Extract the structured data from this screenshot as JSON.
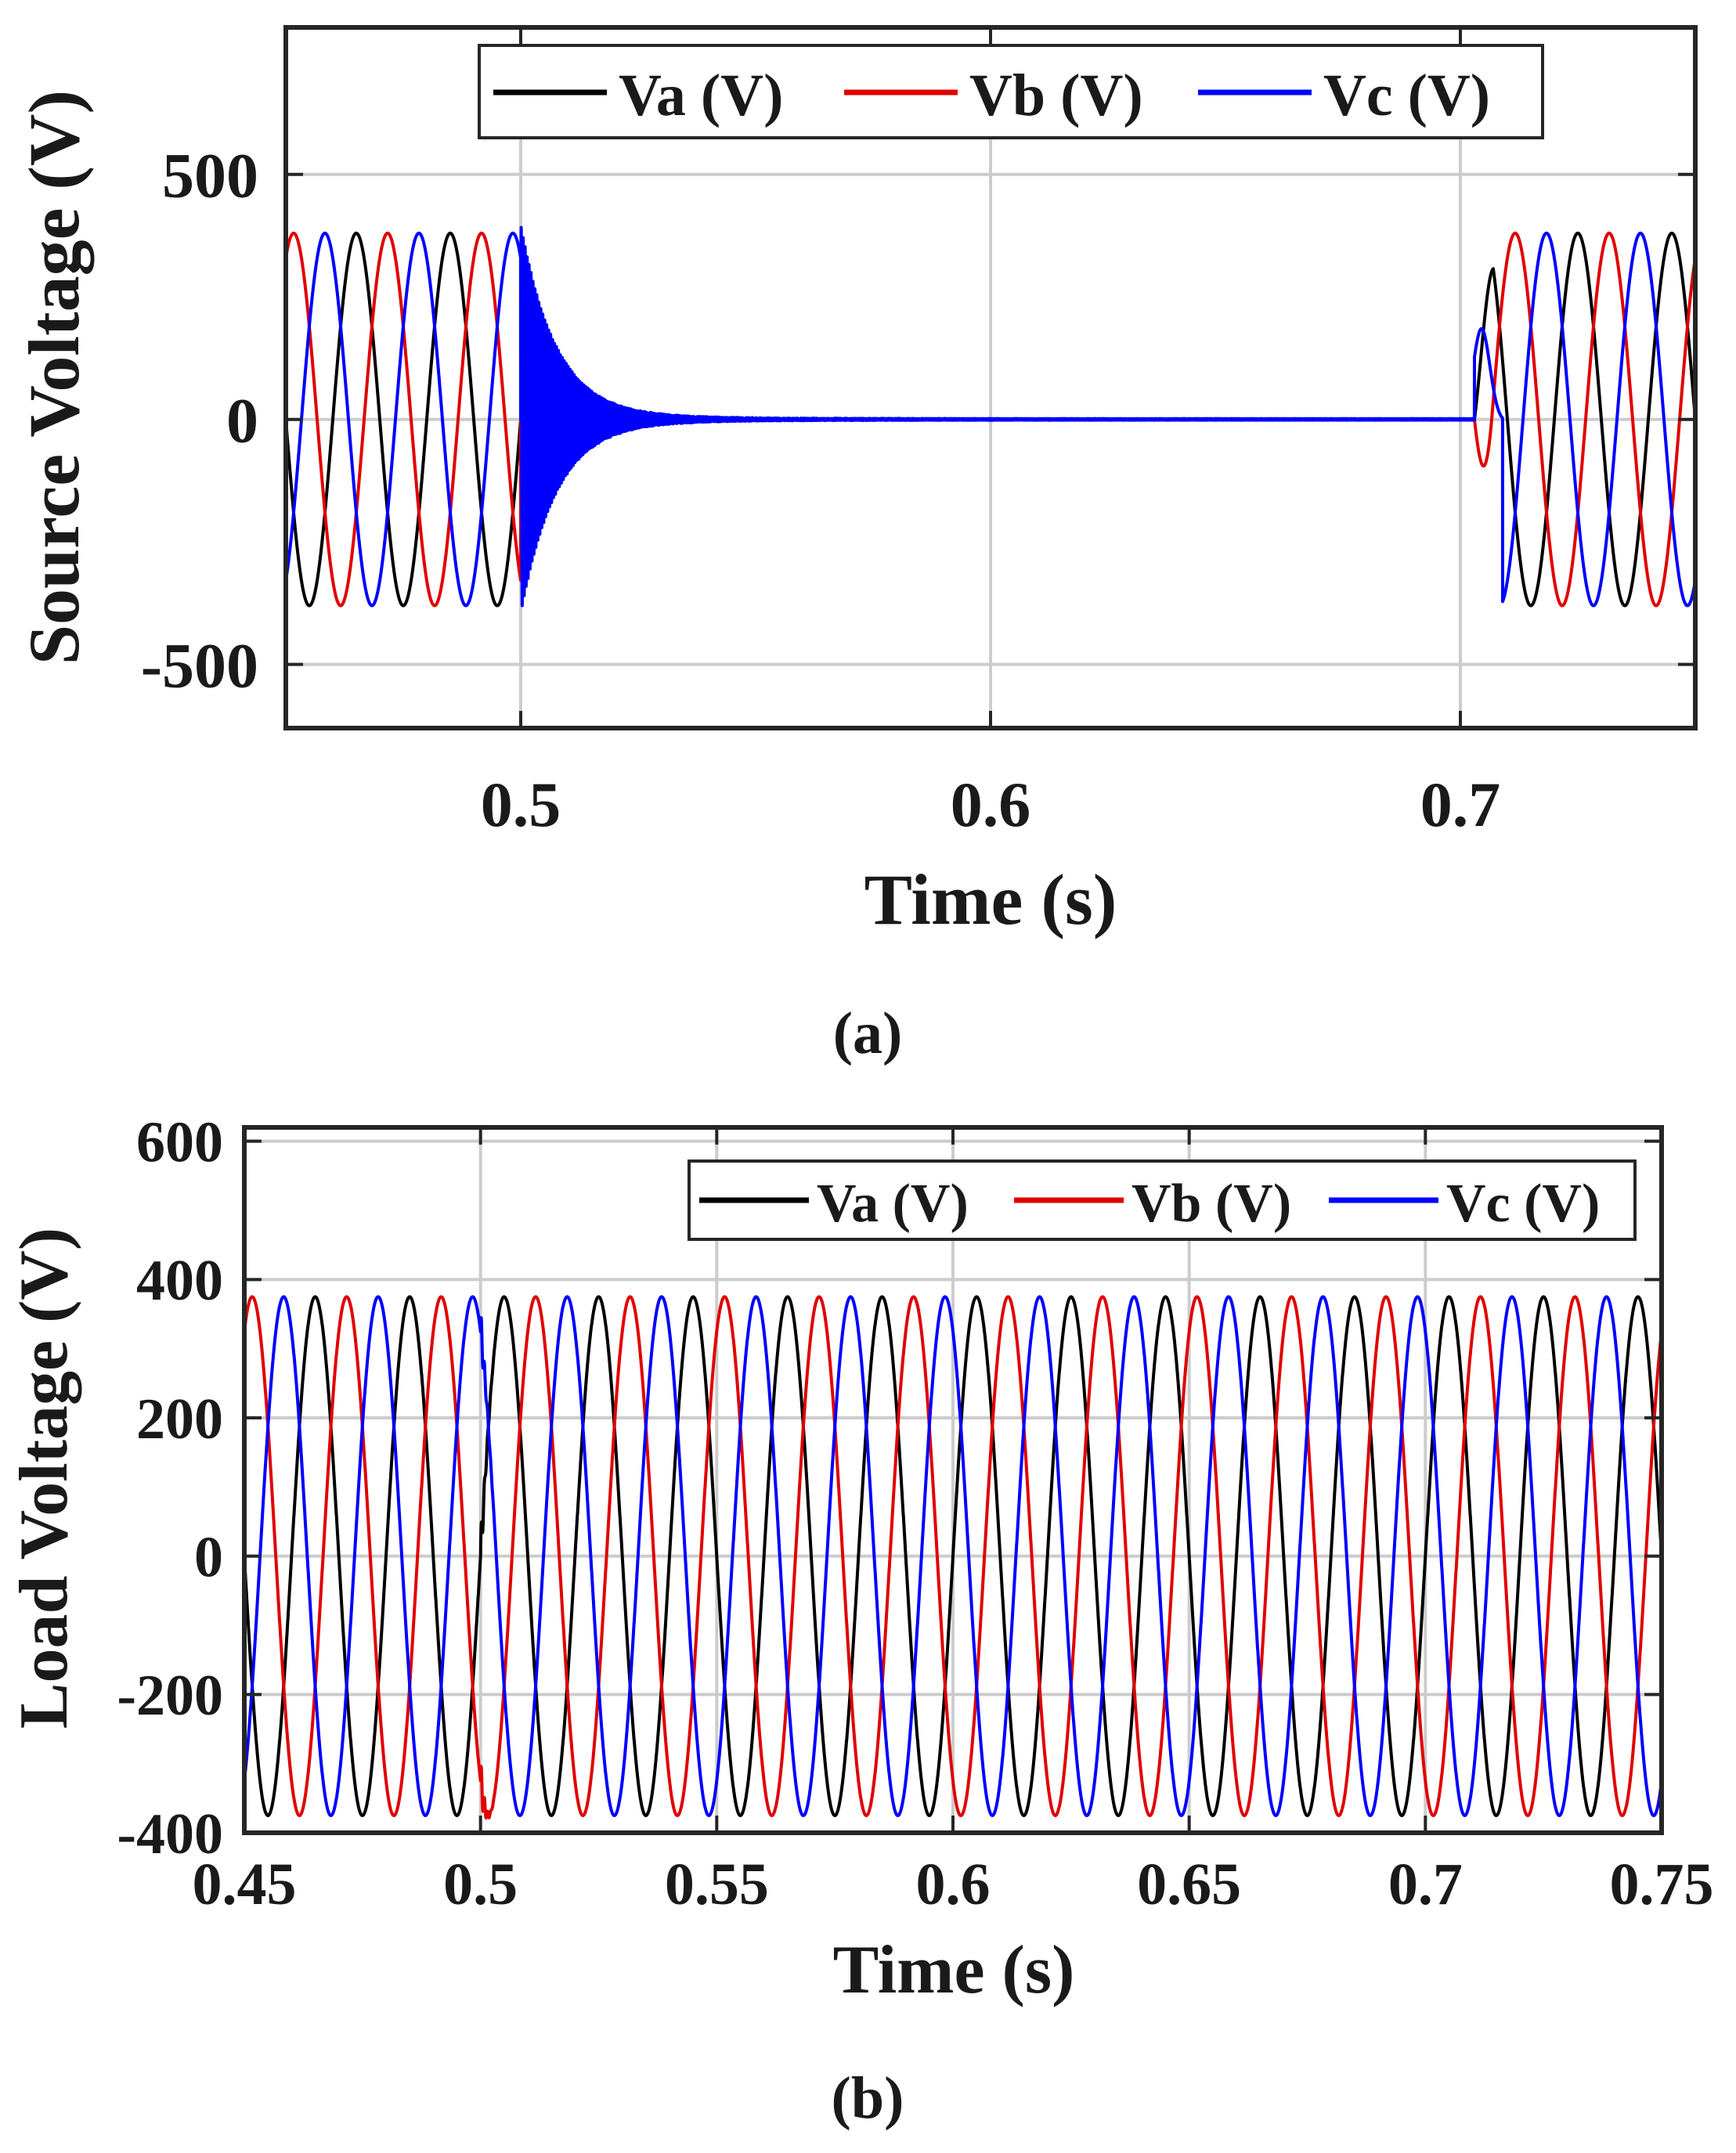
{
  "chart_data": [
    {
      "type": "line",
      "panel_label": "(a)",
      "panel_letter": "a",
      "title": "",
      "xlabel": "Time (s)",
      "ylabel": "Source Voltage (V)",
      "xlim": [
        0.45,
        0.75
      ],
      "ylim": [
        -630,
        800
      ],
      "xticks": [
        0.5,
        0.6,
        0.7
      ],
      "xtick_labels": [
        "0.5",
        "0.6",
        "0.7"
      ],
      "yticks": [
        -500,
        0,
        500
      ],
      "ytick_labels": [
        "-500",
        "0",
        "500"
      ],
      "grid": true,
      "legend": {
        "placement": "top",
        "orientation": "horizontal"
      },
      "frequency_hz": 50,
      "amplitude_v": 380,
      "events": [
        {
          "t": 0.5,
          "description": "source disconnected, voltage decays to 0"
        },
        {
          "t": 0.703,
          "description": "source voltage restored"
        }
      ],
      "series": [
        {
          "name": "Va (V)",
          "color": "#000000",
          "phase_deg": 0
        },
        {
          "name": "Vb (V)",
          "color": "#e00000",
          "phase_deg": -120
        },
        {
          "name": "Vc (V)",
          "color": "#0000ff",
          "phase_deg": 120
        }
      ]
    },
    {
      "type": "line",
      "panel_label": "(b)",
      "panel_letter": "b",
      "title": "",
      "xlabel": "Time (s)",
      "ylabel": "Load Voltage (V)",
      "xlim": [
        0.45,
        0.75
      ],
      "ylim": [
        -400,
        620
      ],
      "xticks": [
        0.45,
        0.5,
        0.55,
        0.6,
        0.65,
        0.7,
        0.75
      ],
      "xtick_labels": [
        "0.45",
        "0.5",
        "0.55",
        "0.6",
        "0.65",
        "0.7",
        "0.75"
      ],
      "yticks": [
        -400,
        -200,
        0,
        200,
        400,
        600
      ],
      "ytick_labels": [
        "-400",
        "-200",
        "0",
        "200",
        "400",
        "600"
      ],
      "grid": true,
      "legend": {
        "placement": "top-right",
        "orientation": "horizontal"
      },
      "frequency_hz": 50,
      "amplitude_v": 375,
      "events": [
        {
          "t": 0.5,
          "description": "brief transient at disconnection, load voltage maintained"
        }
      ],
      "series": [
        {
          "name": "Va (V)",
          "color": "#000000",
          "phase_deg": 0
        },
        {
          "name": "Vb (V)",
          "color": "#e00000",
          "phase_deg": -120
        },
        {
          "name": "Vc (V)",
          "color": "#0000ff",
          "phase_deg": 120
        }
      ]
    }
  ]
}
